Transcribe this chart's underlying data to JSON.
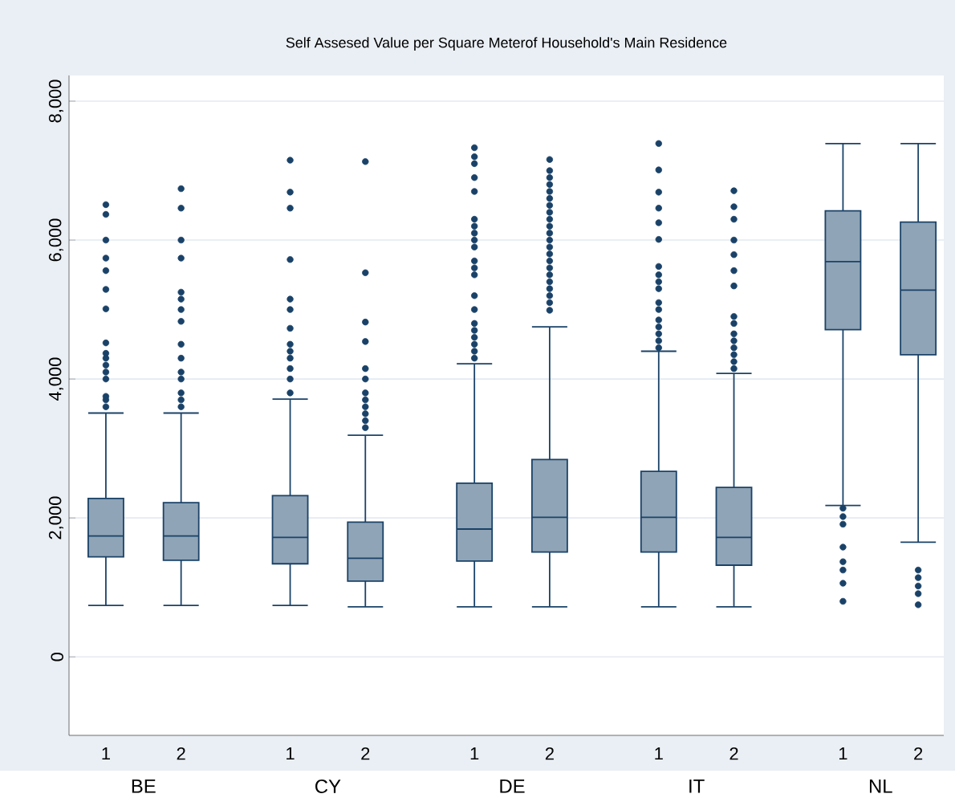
{
  "chart_data": {
    "type": "box",
    "title": "Self Assesed Value per Square Meterof Household's Main Residence",
    "categories": [
      "1",
      "2",
      "1",
      "2",
      "1",
      "2",
      "1",
      "2",
      "1",
      "2"
    ],
    "annotations": [
      "BE",
      "CY",
      "DE",
      "IT",
      "NL"
    ],
    "series": [
      {
        "color": "#8fa4b6",
        "boxes": [
          {
            "low": 740,
            "q1": 1440,
            "median": 1740,
            "q3": 2280,
            "high": 3510,
            "outliers": [
              3600,
              3700,
              3750,
              4000,
              4100,
              4200,
              4300,
              4370,
              4520,
              5010,
              5290,
              5560,
              5740,
              6000,
              6370,
              6510
            ]
          },
          {
            "low": 740,
            "q1": 1390,
            "median": 1740,
            "q3": 2220,
            "high": 3510,
            "outliers": [
              3600,
              3700,
              3800,
              4000,
              4100,
              4300,
              4500,
              4830,
              5000,
              5150,
              5250,
              5740,
              6000,
              6460,
              6740
            ]
          },
          {
            "low": 740,
            "q1": 1340,
            "median": 1720,
            "q3": 2320,
            "high": 3710,
            "outliers": [
              3800,
              4000,
              4150,
              4300,
              4400,
              4500,
              4730,
              5000,
              5150,
              5720,
              6460,
              6690,
              7150
            ]
          },
          {
            "low": 720,
            "q1": 1090,
            "median": 1420,
            "q3": 1940,
            "high": 3190,
            "outliers": [
              3300,
              3400,
              3500,
              3600,
              3700,
              3800,
              4000,
              4150,
              4540,
              4820,
              5530,
              7130
            ]
          },
          {
            "low": 720,
            "q1": 1380,
            "median": 1840,
            "q3": 2500,
            "high": 4220,
            "outliers": [
              4300,
              4400,
              4500,
              4600,
              4700,
              4800,
              5000,
              5200,
              5500,
              5600,
              5700,
              5900,
              6000,
              6100,
              6200,
              6300,
              6700,
              6900,
              7100,
              7200,
              7330
            ]
          },
          {
            "low": 720,
            "q1": 1510,
            "median": 2010,
            "q3": 2840,
            "high": 4750,
            "outliers": [
              4990,
              5100,
              5200,
              5300,
              5400,
              5500,
              5600,
              5700,
              5800,
              5900,
              6000,
              6100,
              6200,
              6300,
              6400,
              6500,
              6600,
              6700,
              6800,
              6900,
              7000,
              7160
            ]
          },
          {
            "low": 720,
            "q1": 1510,
            "median": 2010,
            "q3": 2670,
            "high": 4400,
            "outliers": [
              4450,
              4550,
              4650,
              4750,
              4850,
              5000,
              5100,
              5300,
              5400,
              5500,
              5620,
              6010,
              6250,
              6460,
              6690,
              7010,
              7390
            ]
          },
          {
            "low": 720,
            "q1": 1320,
            "median": 1720,
            "q3": 2440,
            "high": 4080,
            "outliers": [
              4150,
              4250,
              4350,
              4450,
              4550,
              4650,
              4800,
              4900,
              5340,
              5560,
              5790,
              6000,
              6300,
              6480,
              6710
            ]
          },
          {
            "low": 2180,
            "q1": 4710,
            "median": 5690,
            "q3": 6420,
            "high": 7390,
            "outliers": [
              2140,
              2020,
              1910,
              1580,
              1370,
              1250,
              1060,
              800
            ]
          },
          {
            "low": 1650,
            "q1": 4350,
            "median": 5280,
            "q3": 6260,
            "high": 7390,
            "outliers": [
              1250,
              1140,
              1020,
              910,
              750
            ]
          }
        ]
      }
    ],
    "ylim": [
      -1130,
      8370
    ],
    "yticks": [
      0,
      {
        "value": 2000,
        "label": "2,000"
      },
      {
        "value": 4000,
        "label": "4,000"
      },
      {
        "value": 6000,
        "label": "6,000"
      },
      {
        "value": 8000,
        "label": "8,000"
      }
    ],
    "grid": "y"
  }
}
